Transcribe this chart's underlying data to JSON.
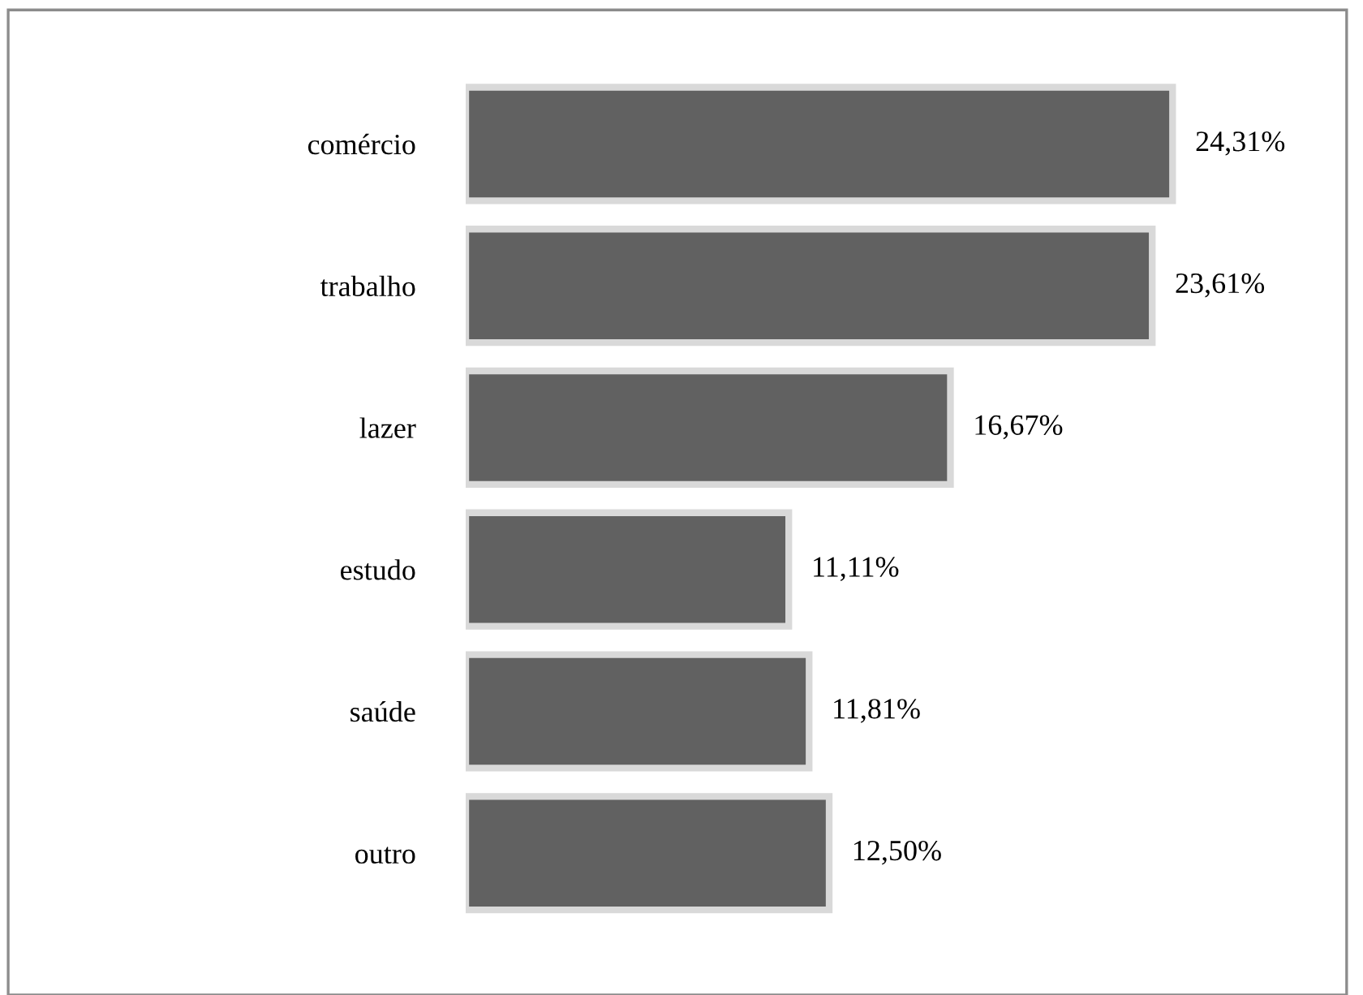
{
  "chart_data": {
    "type": "bar",
    "orientation": "horizontal",
    "categories": [
      "comércio",
      "trabalho",
      "lazer",
      "estudo",
      "saúde",
      "outro"
    ],
    "values": [
      24.31,
      23.61,
      16.67,
      11.11,
      11.81,
      12.5
    ],
    "value_labels": [
      "24,31%",
      "23,61%",
      "16,67%",
      "11,11%",
      "11,81%",
      "12,50%"
    ],
    "color": "#616161",
    "grid": false,
    "legend": false
  }
}
